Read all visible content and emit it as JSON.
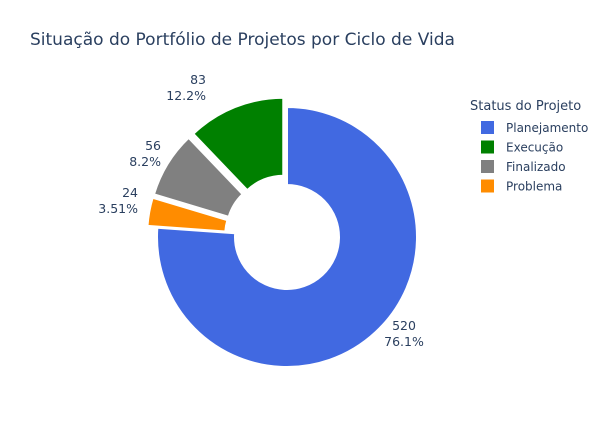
{
  "chart_data": {
    "type": "pie",
    "hole": true,
    "title": "Situação do Portfólio de Projetos por Ciclo de Vida",
    "legend": {
      "title": "Status do Projeto",
      "position": "right"
    },
    "slices": [
      {
        "label": "Planejamento",
        "value": 520,
        "percent_label": "76.1%",
        "color": "#4169e1"
      },
      {
        "label": "Problema",
        "value": 24,
        "percent_label": "3.51%",
        "color": "#ff8c00"
      },
      {
        "label": "Finalizado",
        "value": 56,
        "percent_label": "8.2%",
        "color": "#808080"
      },
      {
        "label": "Execução",
        "value": 83,
        "percent_label": "12.2%",
        "color": "#008000"
      }
    ],
    "legend_order": [
      "Planejamento",
      "Execução",
      "Finalizado",
      "Problema"
    ]
  }
}
